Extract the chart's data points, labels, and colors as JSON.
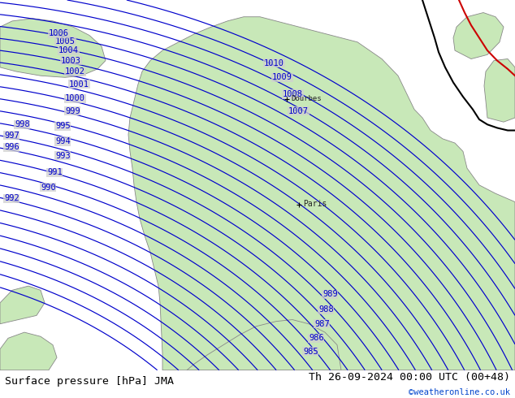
{
  "title_left": "Surface pressure [hPa] JMA",
  "title_right": "Th 26-09-2024 00:00 UTC (00+48)",
  "copyright": "©weatheronline.co.uk",
  "bg_color": "#d0d0d0",
  "land_color": "#c8e8b8",
  "isobar_color": "#0000cc",
  "label_color": "#0000cc",
  "text_color": "#000000",
  "copyright_color": "#0044cc",
  "font_size_title": 9.5,
  "font_size_labels": 7.5,
  "font_size_copyright": 7.5,
  "coast_color": "#888888",
  "coast_lw": 0.6,
  "isobar_lw": 0.85,
  "front_black_color": "#000000",
  "front_red_color": "#cc0000",
  "front_lw": 1.5
}
